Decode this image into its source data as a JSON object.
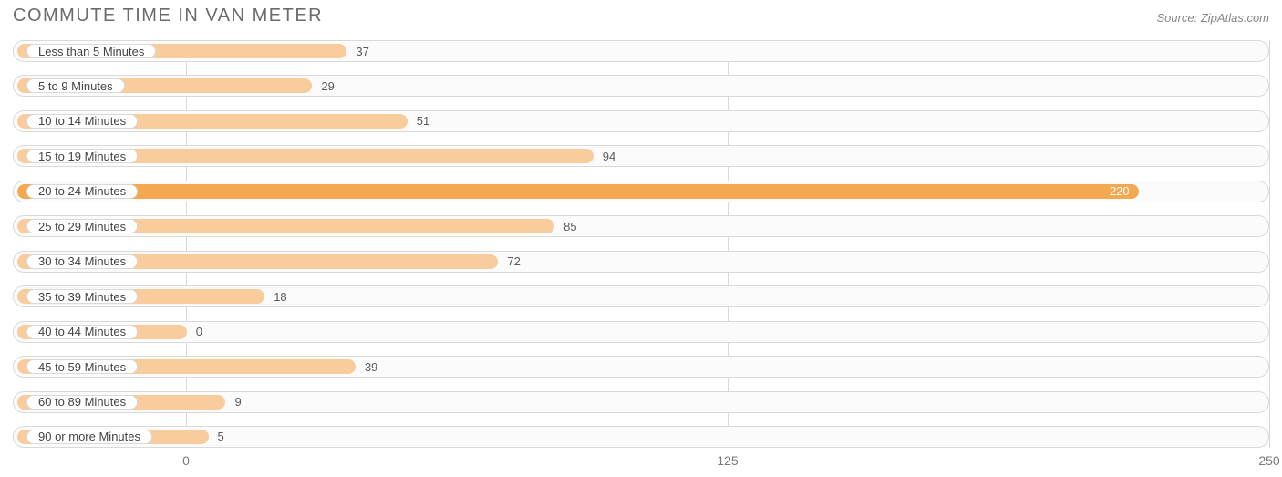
{
  "title": "COMMUTE TIME IN VAN METER",
  "source": "Source: ZipAtlas.com",
  "chart": {
    "type": "bar-horizontal",
    "background_color": "#ffffff",
    "track_bg": "#fbfbfb",
    "track_border": "#d9d9d9",
    "grid_color": "#d9d9d9",
    "title_color": "#6b6c6d",
    "title_fontsize": 20,
    "label_color": "#444444",
    "label_fontsize": 13,
    "value_color": "#5a5a5a",
    "value_fontsize": 13,
    "tick_color": "#7a7a7a",
    "tick_fontsize": 14,
    "xlim": [
      -40,
      250
    ],
    "xticks": [
      0,
      125,
      250
    ],
    "bar_origin": -40,
    "bar_color_normal": "#f9cc9d",
    "bar_color_highlight": "#f4a84f",
    "value_label_inside_color": "#ffffff",
    "categories": [
      "Less than 5 Minutes",
      "5 to 9 Minutes",
      "10 to 14 Minutes",
      "15 to 19 Minutes",
      "20 to 24 Minutes",
      "25 to 29 Minutes",
      "30 to 34 Minutes",
      "35 to 39 Minutes",
      "40 to 44 Minutes",
      "45 to 59 Minutes",
      "60 to 89 Minutes",
      "90 or more Minutes"
    ],
    "values": [
      37,
      29,
      51,
      94,
      220,
      85,
      72,
      18,
      0,
      39,
      9,
      5
    ],
    "highlight_index": 4
  }
}
